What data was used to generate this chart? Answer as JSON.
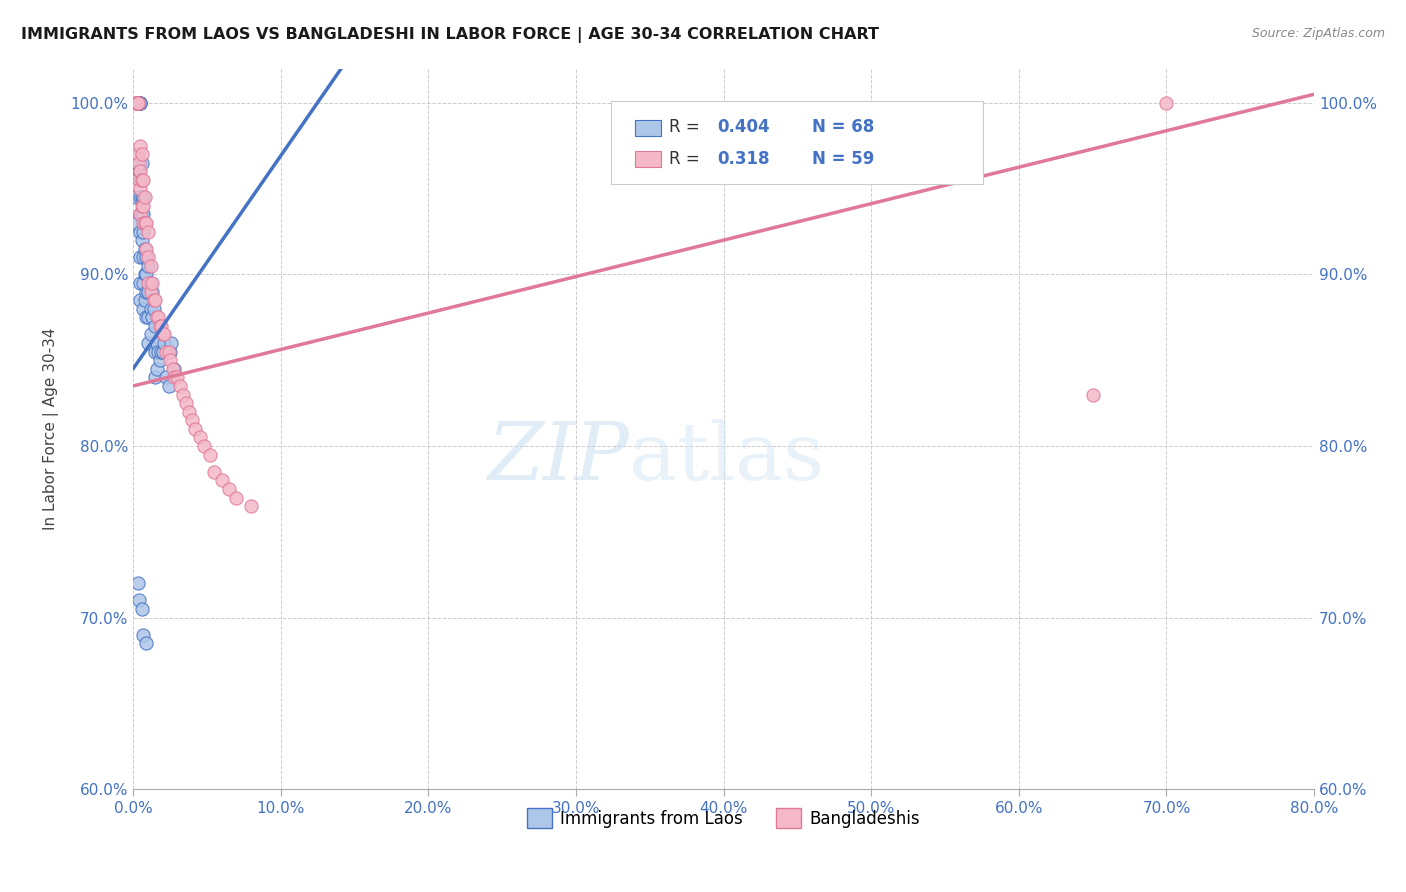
{
  "title": "IMMIGRANTS FROM LAOS VS BANGLADESHI IN LABOR FORCE | AGE 30-34 CORRELATION CHART",
  "source": "Source: ZipAtlas.com",
  "ylabel": "In Labor Force | Age 30-34",
  "xlim": [
    0.0,
    0.8
  ],
  "ylim": [
    0.6,
    1.02
  ],
  "x_ticks": [
    0.0,
    0.1,
    0.2,
    0.3,
    0.4,
    0.5,
    0.6,
    0.7,
    0.8
  ],
  "y_ticks": [
    0.6,
    0.7,
    0.8,
    0.9,
    1.0
  ],
  "legend_r1": "0.404",
  "legend_n1": "68",
  "legend_r2": "0.318",
  "legend_n2": "59",
  "color_laos_fill": "#aec6e8",
  "color_laos_edge": "#4472c4",
  "color_bangladeshi_fill": "#f4b8c8",
  "color_bangladeshi_edge": "#e07898",
  "color_line_laos": "#4472c4",
  "color_line_bangladeshi": "#e07898",
  "color_tick": "#4472c4",
  "color_r_val": "#4472c4",
  "watermark_zip": "ZIP",
  "watermark_atlas": "atlas",
  "scatter_laos_x": [
    0.002,
    0.002,
    0.003,
    0.003,
    0.003,
    0.004,
    0.004,
    0.004,
    0.004,
    0.004,
    0.005,
    0.005,
    0.005,
    0.005,
    0.005,
    0.005,
    0.005,
    0.005,
    0.005,
    0.005,
    0.006,
    0.006,
    0.006,
    0.006,
    0.007,
    0.007,
    0.007,
    0.007,
    0.007,
    0.007,
    0.008,
    0.008,
    0.008,
    0.008,
    0.009,
    0.009,
    0.009,
    0.009,
    0.01,
    0.01,
    0.01,
    0.01,
    0.012,
    0.012,
    0.012,
    0.013,
    0.013,
    0.014,
    0.015,
    0.015,
    0.015,
    0.016,
    0.016,
    0.017,
    0.018,
    0.019,
    0.02,
    0.021,
    0.022,
    0.024,
    0.025,
    0.026,
    0.028,
    0.003,
    0.004,
    0.006,
    0.007,
    0.009
  ],
  "scatter_laos_y": [
    0.945,
    0.93,
    1.0,
    1.0,
    1.0,
    1.0,
    1.0,
    1.0,
    1.0,
    0.96,
    1.0,
    1.0,
    1.0,
    0.955,
    0.945,
    0.935,
    0.925,
    0.91,
    0.895,
    0.885,
    0.965,
    0.945,
    0.935,
    0.92,
    0.945,
    0.935,
    0.925,
    0.91,
    0.895,
    0.88,
    0.93,
    0.915,
    0.9,
    0.885,
    0.91,
    0.9,
    0.89,
    0.875,
    0.905,
    0.89,
    0.875,
    0.86,
    0.895,
    0.88,
    0.865,
    0.89,
    0.875,
    0.88,
    0.87,
    0.855,
    0.84,
    0.86,
    0.845,
    0.855,
    0.85,
    0.855,
    0.855,
    0.86,
    0.84,
    0.835,
    0.855,
    0.86,
    0.845,
    0.72,
    0.71,
    0.705,
    0.69,
    0.685
  ],
  "scatter_bangladeshi_x": [
    0.002,
    0.002,
    0.002,
    0.003,
    0.003,
    0.003,
    0.003,
    0.004,
    0.004,
    0.005,
    0.005,
    0.005,
    0.005,
    0.006,
    0.006,
    0.006,
    0.007,
    0.007,
    0.007,
    0.008,
    0.008,
    0.009,
    0.009,
    0.01,
    0.01,
    0.01,
    0.012,
    0.012,
    0.013,
    0.014,
    0.015,
    0.016,
    0.017,
    0.018,
    0.019,
    0.02,
    0.021,
    0.022,
    0.024,
    0.025,
    0.027,
    0.028,
    0.03,
    0.032,
    0.034,
    0.036,
    0.038,
    0.04,
    0.042,
    0.045,
    0.048,
    0.052,
    0.055,
    0.06,
    0.065,
    0.07,
    0.08,
    0.65,
    0.7
  ],
  "scatter_bangladeshi_y": [
    1.0,
    1.0,
    1.0,
    1.0,
    1.0,
    1.0,
    0.97,
    0.965,
    0.955,
    0.975,
    0.96,
    0.95,
    0.935,
    0.97,
    0.955,
    0.94,
    0.955,
    0.94,
    0.93,
    0.945,
    0.93,
    0.93,
    0.915,
    0.925,
    0.91,
    0.895,
    0.905,
    0.89,
    0.895,
    0.885,
    0.885,
    0.875,
    0.875,
    0.87,
    0.87,
    0.865,
    0.865,
    0.855,
    0.855,
    0.85,
    0.845,
    0.84,
    0.84,
    0.835,
    0.83,
    0.825,
    0.82,
    0.815,
    0.81,
    0.805,
    0.8,
    0.795,
    0.785,
    0.78,
    0.775,
    0.77,
    0.765,
    0.83,
    1.0
  ]
}
